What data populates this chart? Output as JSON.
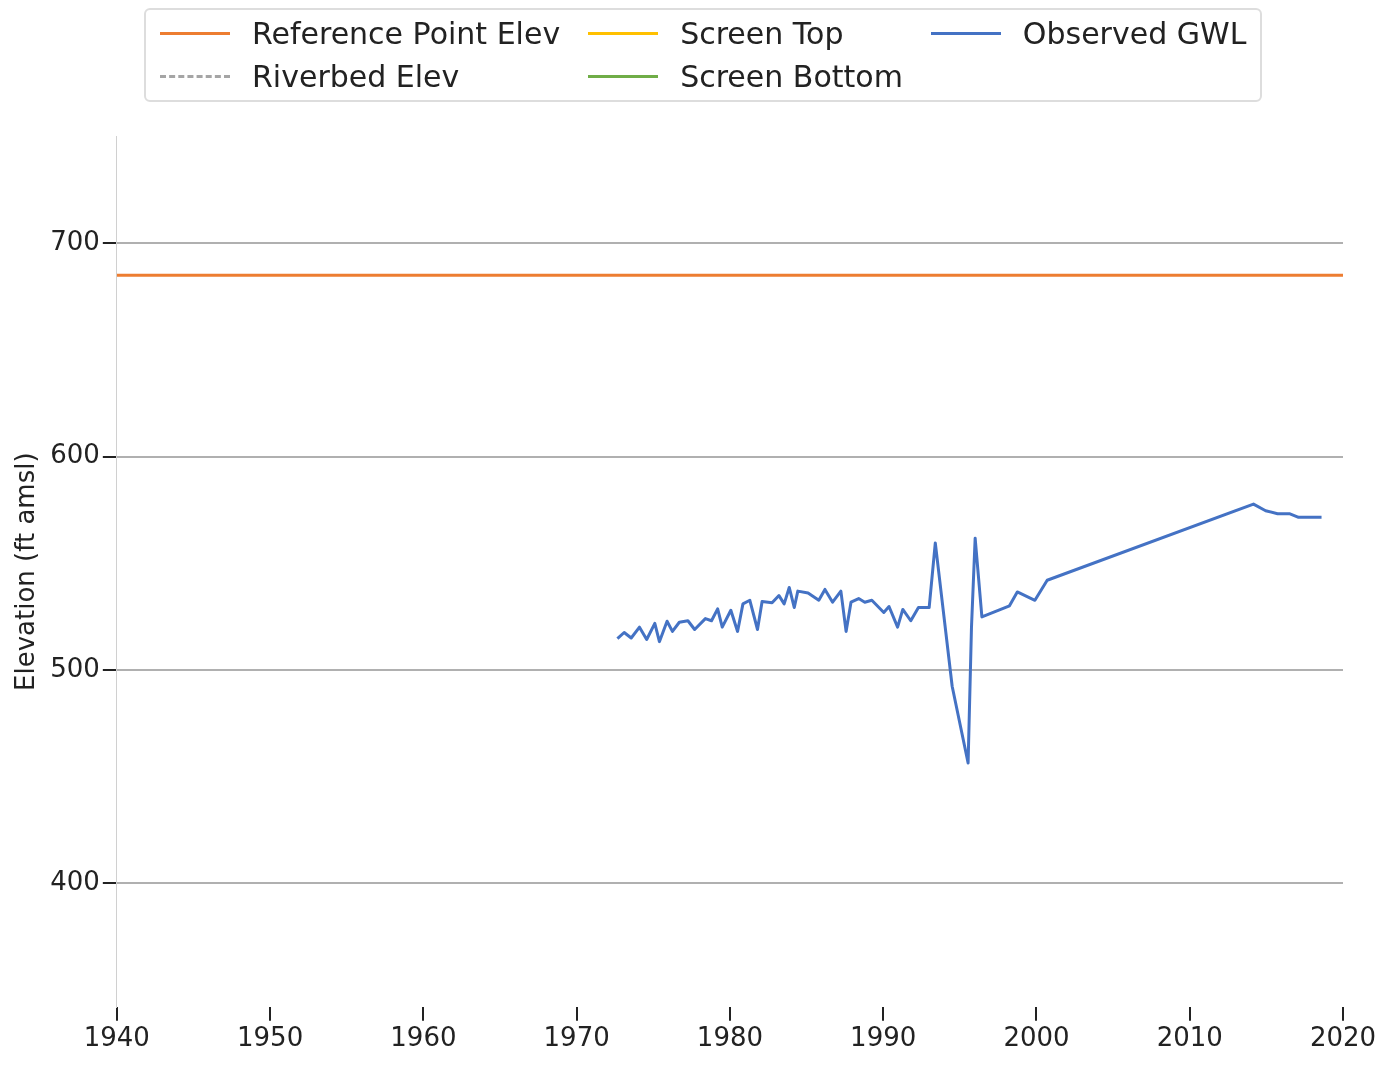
{
  "chart_data": {
    "type": "line",
    "ylabel": "Elevation (ft amsl)",
    "xlim": [
      1940,
      2020
    ],
    "xticks": [
      1940,
      1950,
      1960,
      1970,
      1980,
      1990,
      2000,
      2010,
      2020
    ],
    "ylim": [
      342,
      750
    ],
    "yticks": [
      400,
      500,
      600,
      700
    ],
    "grid": "y",
    "legend": "top",
    "series": [
      {
        "name": "Reference Point Elev",
        "color": "#ed7d31",
        "x": [
          1940,
          2020
        ],
        "values": [
          685,
          685
        ]
      },
      {
        "name": "Riverbed Elev",
        "color": "#a5a5a5",
        "line_style": "dashed"
      },
      {
        "name": "Screen Top",
        "color": "#ffc000"
      },
      {
        "name": "Screen Bottom",
        "color": "#70ad47"
      },
      {
        "name": "Observed GWL",
        "color": "#4472c4",
        "x": [
          1972.66,
          1973.1,
          1973.56,
          1974.1,
          1974.57,
          1975.1,
          1975.4,
          1975.9,
          1976.25,
          1976.7,
          1977.26,
          1977.7,
          1978.4,
          1978.8,
          1979.2,
          1979.5,
          1980.06,
          1980.5,
          1980.85,
          1981.3,
          1981.8,
          1982.1,
          1982.75,
          1983.2,
          1983.54,
          1983.87,
          1984.2,
          1984.43,
          1985.1,
          1985.8,
          1986.2,
          1986.7,
          1987.24,
          1987.58,
          1987.9,
          1988.4,
          1988.8,
          1989.26,
          1990.04,
          1990.38,
          1990.94,
          1991.28,
          1991.8,
          1992.3,
          1993.0,
          1993.4,
          1994.5,
          1995.54,
          1995.76,
          1996.0,
          1996.44,
          1998.24,
          1998.75,
          1999.9,
          2000.7,
          2014.16,
          2014.95,
          2015.73,
          2016.5,
          2017.1,
          2018.6
        ],
        "values": [
          514.6,
          517.5,
          514.9,
          520,
          514.2,
          521.8,
          513.2,
          522.8,
          518,
          522.3,
          523,
          518.9,
          524,
          523,
          528.6,
          520,
          527.9,
          518,
          530.9,
          532.6,
          518.9,
          532,
          531.4,
          534.8,
          530.9,
          538.6,
          529.2,
          536.9,
          536,
          532.6,
          537.7,
          531.7,
          536.9,
          518,
          531.7,
          533.4,
          531.7,
          532.6,
          526.9,
          529.7,
          520,
          528.3,
          523,
          529.2,
          529.2,
          559.5,
          492.3,
          456.3,
          519.7,
          561.7,
          524.8,
          530,
          536.5,
          532.6,
          542,
          577.7,
          574.6,
          573.2,
          573.2,
          571.5,
          571.5
        ]
      }
    ]
  }
}
